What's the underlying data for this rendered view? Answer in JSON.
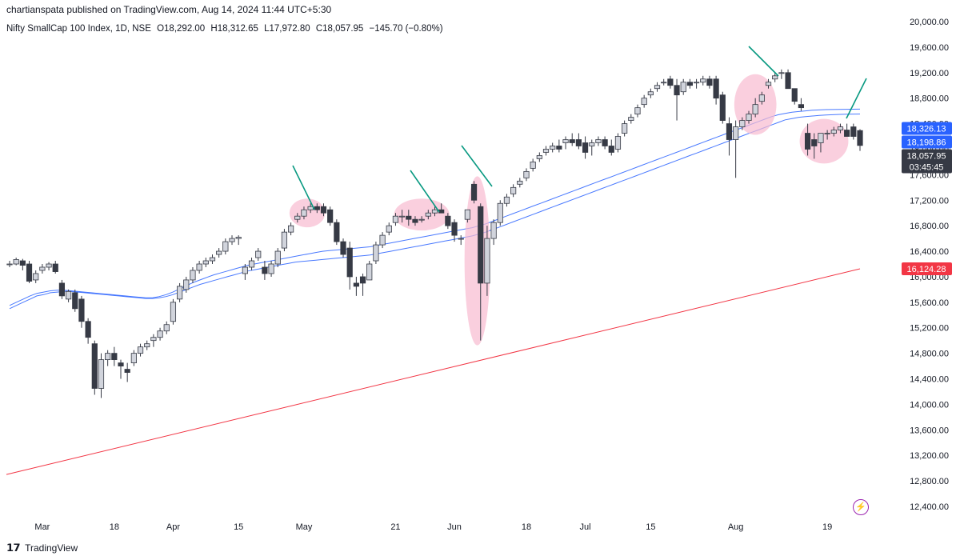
{
  "header": {
    "publisher": "chartianspata published on TradingView.com, Aug 14, 2024 11:44 UTC+5:30"
  },
  "symbol_line": {
    "name": "Nifty SmallCap 100 Index, 1D, NSE",
    "open": "O18,292.00",
    "high": "H18,312.65",
    "low": "L17,972.80",
    "close": "C18,057.95",
    "change": "−145.70 (−0.80%)"
  },
  "footer": {
    "brand": "TradingView",
    "logo": "tv-logo-icon"
  },
  "icons": {
    "lightning": "lightning-icon"
  },
  "price_tags": [
    {
      "label": "18,326.13",
      "value": 18326.13,
      "color": "#2962ff"
    },
    {
      "label": "18,198.86",
      "value": 18198.86,
      "color": "#2962ff"
    },
    {
      "label": "18,057.95",
      "sublabel": "03:45:45",
      "value": 18057.95,
      "color": "#363a45"
    },
    {
      "label": "16,124.28",
      "value": 16124.28,
      "color": "#f23645"
    }
  ],
  "chart_data": {
    "type": "candlestick",
    "ylim": [
      12200,
      20000
    ],
    "y_ticks": [
      12400,
      12800,
      13200,
      13600,
      14000,
      14400,
      14800,
      15200,
      15600,
      16000,
      16400,
      16800,
      17200,
      17600,
      18000,
      18400,
      18800,
      19200,
      19600,
      20000
    ],
    "y_tick_labels": [
      "12,400.00",
      "12,800.00",
      "13,200.00",
      "13,600.00",
      "14,000.00",
      "14,400.00",
      "14,800.00",
      "15,200.00",
      "15,600.00",
      "16,000.00",
      "16,400.00",
      "16,800.00",
      "17,200.00",
      "17,600.00",
      "18,000.00",
      "18,400.00",
      "18,800.00",
      "19,200.00",
      "19,600.00",
      "20,000.00"
    ],
    "x_tick_labels": [
      {
        "label": "Mar",
        "index": 5
      },
      {
        "label": "18",
        "index": 16
      },
      {
        "label": "Apr",
        "index": 25
      },
      {
        "label": "15",
        "index": 35
      },
      {
        "label": "May",
        "index": 45
      },
      {
        "label": "21",
        "index": 59
      },
      {
        "label": "Jun",
        "index": 68
      },
      {
        "label": "18",
        "index": 79
      },
      {
        "label": "Jul",
        "index": 88
      },
      {
        "label": "15",
        "index": 98
      },
      {
        "label": "Aug",
        "index": 111
      },
      {
        "label": "19",
        "index": 125
      }
    ],
    "candles": [
      [
        16200,
        16250,
        16150,
        16200
      ],
      [
        16200,
        16300,
        16180,
        16270
      ],
      [
        16250,
        16280,
        16100,
        16180
      ],
      [
        16200,
        16250,
        15900,
        15930
      ],
      [
        15950,
        16100,
        15900,
        16050
      ],
      [
        16100,
        16200,
        16050,
        16150
      ],
      [
        16150,
        16230,
        16100,
        16200
      ],
      [
        16200,
        16250,
        16050,
        16080
      ],
      [
        15900,
        15950,
        15650,
        15700
      ],
      [
        15650,
        15800,
        15600,
        15770
      ],
      [
        15750,
        15800,
        15450,
        15500
      ],
      [
        15650,
        15700,
        15200,
        15300
      ],
      [
        15300,
        15350,
        14950,
        15050
      ],
      [
        14950,
        15000,
        14150,
        14250
      ],
      [
        14250,
        14800,
        14100,
        14700
      ],
      [
        14700,
        14850,
        14600,
        14800
      ],
      [
        14800,
        14900,
        14600,
        14700
      ],
      [
        14650,
        14700,
        14400,
        14600
      ],
      [
        14550,
        14650,
        14350,
        14500
      ],
      [
        14650,
        14850,
        14600,
        14800
      ],
      [
        14800,
        14950,
        14750,
        14900
      ],
      [
        14900,
        15000,
        14850,
        14950
      ],
      [
        15000,
        15100,
        14900,
        15050
      ],
      [
        15050,
        15200,
        15000,
        15150
      ],
      [
        15150,
        15300,
        15100,
        15250
      ],
      [
        15300,
        15650,
        15250,
        15600
      ],
      [
        15650,
        15900,
        15600,
        15850
      ],
      [
        15800,
        16000,
        15750,
        15950
      ],
      [
        15950,
        16150,
        15900,
        16100
      ],
      [
        16100,
        16250,
        16050,
        16200
      ],
      [
        16200,
        16300,
        16150,
        16250
      ],
      [
        16250,
        16350,
        16200,
        16300
      ],
      [
        16350,
        16450,
        16300,
        16400
      ],
      [
        16400,
        16600,
        16350,
        16550
      ],
      [
        16550,
        16650,
        16500,
        16600
      ],
      [
        16600,
        16650,
        16500,
        16620
      ],
      [
        16050,
        16200,
        15950,
        16150
      ],
      [
        16150,
        16300,
        16100,
        16250
      ],
      [
        16300,
        16450,
        16250,
        16400
      ],
      [
        16150,
        16250,
        15950,
        16050
      ],
      [
        16050,
        16250,
        16000,
        16200
      ],
      [
        16200,
        16450,
        16150,
        16400
      ],
      [
        16450,
        16750,
        16400,
        16700
      ],
      [
        16700,
        16850,
        16650,
        16800
      ],
      [
        16900,
        17000,
        16850,
        16950
      ],
      [
        16950,
        17100,
        16900,
        17050
      ],
      [
        17050,
        17150,
        17000,
        17100
      ],
      [
        17100,
        17150,
        17000,
        17050
      ],
      [
        17100,
        17150,
        16950,
        17000
      ],
      [
        17050,
        17100,
        16800,
        16850
      ],
      [
        16850,
        16900,
        16500,
        16550
      ],
      [
        16550,
        16600,
        16300,
        16350
      ],
      [
        16450,
        16550,
        15800,
        16000
      ],
      [
        15900,
        16000,
        15700,
        15850
      ],
      [
        16000,
        16050,
        15700,
        15900
      ],
      [
        15950,
        16250,
        15950,
        16200
      ],
      [
        16250,
        16550,
        16200,
        16500
      ],
      [
        16500,
        16700,
        16450,
        16650
      ],
      [
        16700,
        16850,
        16650,
        16800
      ],
      [
        16850,
        17000,
        16800,
        16950
      ],
      [
        16950,
        17050,
        16850,
        16950
      ],
      [
        16950,
        17050,
        16800,
        16900
      ],
      [
        16900,
        16950,
        16800,
        16850
      ],
      [
        16900,
        16950,
        16850,
        16900
      ],
      [
        16950,
        17050,
        16900,
        17000
      ],
      [
        17000,
        17100,
        16950,
        17050
      ],
      [
        17050,
        17150,
        17000,
        17000
      ],
      [
        16950,
        17000,
        16750,
        16800
      ],
      [
        16850,
        16900,
        16550,
        16650
      ],
      [
        16600,
        16650,
        16500,
        16600
      ],
      [
        16900,
        17000,
        16850,
        17050
      ],
      [
        17450,
        17500,
        17150,
        17200
      ],
      [
        17100,
        17150,
        15000,
        15900
      ],
      [
        15900,
        16800,
        15700,
        16600
      ],
      [
        16600,
        16900,
        16500,
        16850
      ],
      [
        16850,
        17200,
        16800,
        17150
      ],
      [
        17150,
        17300,
        17100,
        17250
      ],
      [
        17300,
        17450,
        17250,
        17400
      ],
      [
        17450,
        17550,
        17400,
        17500
      ],
      [
        17550,
        17700,
        17500,
        17650
      ],
      [
        17700,
        17850,
        17650,
        17800
      ],
      [
        17850,
        17950,
        17800,
        17900
      ],
      [
        17950,
        18050,
        17900,
        18000
      ],
      [
        18000,
        18100,
        17950,
        18050
      ],
      [
        18050,
        18150,
        17950,
        18000
      ],
      [
        18100,
        18200,
        18000,
        18150
      ],
      [
        18150,
        18250,
        18050,
        18100
      ],
      [
        18150,
        18250,
        18000,
        18050
      ],
      [
        18100,
        18200,
        17850,
        17950
      ],
      [
        18050,
        18150,
        17900,
        18100
      ],
      [
        18100,
        18200,
        18050,
        18150
      ],
      [
        18150,
        18200,
        18000,
        18050
      ],
      [
        18050,
        18150,
        17900,
        17950
      ],
      [
        18000,
        18250,
        17950,
        18200
      ],
      [
        18250,
        18450,
        18200,
        18400
      ],
      [
        18450,
        18550,
        18400,
        18500
      ],
      [
        18550,
        18700,
        18500,
        18650
      ],
      [
        18700,
        18850,
        18650,
        18800
      ],
      [
        18850,
        18950,
        18800,
        18900
      ],
      [
        18950,
        19050,
        18900,
        19000
      ],
      [
        19050,
        19100,
        19000,
        19050
      ],
      [
        19100,
        19150,
        18950,
        19000
      ],
      [
        19000,
        19100,
        18450,
        18850
      ],
      [
        18900,
        19100,
        18850,
        19050
      ],
      [
        19050,
        19100,
        18950,
        19000
      ],
      [
        19050,
        19100,
        18950,
        19050
      ],
      [
        19050,
        19150,
        19000,
        19100
      ],
      [
        19100,
        19150,
        18950,
        19000
      ],
      [
        19100,
        19150,
        18700,
        18800
      ],
      [
        18850,
        18900,
        18400,
        18450
      ],
      [
        18400,
        18500,
        17900,
        18150
      ],
      [
        18150,
        18450,
        17550,
        18350
      ],
      [
        18350,
        18500,
        18300,
        18450
      ],
      [
        18450,
        18600,
        18400,
        18550
      ],
      [
        18550,
        18800,
        18500,
        18700
      ],
      [
        18750,
        18900,
        18700,
        18850
      ],
      [
        19000,
        19100,
        18950,
        19050
      ],
      [
        19100,
        19200,
        19050,
        19150
      ],
      [
        19200,
        19250,
        19100,
        19200
      ],
      [
        19200,
        19250,
        18950,
        18950
      ],
      [
        18950,
        18950,
        18700,
        18750
      ],
      [
        18700,
        18800,
        18600,
        18650
      ],
      [
        18250,
        18400,
        17900,
        18000
      ],
      [
        18150,
        18250,
        17850,
        18050
      ],
      [
        18100,
        18250,
        17950,
        18250
      ],
      [
        18250,
        18300,
        18150,
        18250
      ],
      [
        18250,
        18350,
        18200,
        18300
      ],
      [
        18300,
        18400,
        18250,
        18350
      ],
      [
        18300,
        18400,
        18200,
        18200
      ],
      [
        18350,
        18400,
        18150,
        18200
      ],
      [
        18292,
        18312.65,
        17972.8,
        18057.95
      ]
    ],
    "sma_50": [
      15500,
      15550,
      15600,
      15650,
      15700,
      15720,
      15750,
      15760,
      15770,
      15770,
      15760,
      15750,
      15740,
      15730,
      15720,
      15710,
      15700,
      15690,
      15680,
      15670,
      15660,
      15660,
      15670,
      15690,
      15720,
      15760,
      15800,
      15840,
      15880,
      15910,
      15940,
      15970,
      16000,
      16030,
      16060,
      16090,
      16110,
      16130,
      16150,
      16170,
      16190,
      16210,
      16230,
      16240,
      16250,
      16260,
      16270,
      16280,
      16290,
      16300,
      16310,
      16320,
      16330,
      16340,
      16360,
      16380,
      16400,
      16420,
      16440,
      16460,
      16480,
      16500,
      16520,
      16540,
      16560,
      16580,
      16600,
      16620,
      16640,
      16670,
      16700,
      16740,
      16780,
      16820,
      16860,
      16900,
      16940,
      16980,
      17020,
      17060,
      17100,
      17140,
      17180,
      17220,
      17260,
      17300,
      17340,
      17380,
      17420,
      17460,
      17500,
      17540,
      17580,
      17620,
      17660,
      17700,
      17740,
      17780,
      17820,
      17860,
      17900,
      17940,
      17980,
      18020,
      18060,
      18100,
      18140,
      18180,
      18220,
      18260,
      18300,
      18340,
      18380,
      18420,
      18460,
      18480,
      18500,
      18510,
      18520,
      18530,
      18535,
      18540,
      18545,
      18548,
      18550,
      18552
    ],
    "sma_44": [
      15550,
      15600,
      15650,
      15700,
      15740,
      15760,
      15780,
      15790,
      15790,
      15780,
      15770,
      15760,
      15750,
      15740,
      15730,
      15720,
      15710,
      15700,
      15690,
      15680,
      15670,
      15670,
      15690,
      15720,
      15760,
      15810,
      15860,
      15910,
      15950,
      15990,
      16030,
      16060,
      16090,
      16120,
      16150,
      16180,
      16200,
      16220,
      16240,
      16260,
      16280,
      16300,
      16320,
      16340,
      16360,
      16380,
      16400,
      16410,
      16420,
      16430,
      16440,
      16450,
      16460,
      16470,
      16490,
      16510,
      16530,
      16550,
      16570,
      16590,
      16610,
      16630,
      16650,
      16670,
      16690,
      16710,
      16730,
      16750,
      16770,
      16800,
      16830,
      16870,
      16910,
      16950,
      16990,
      17030,
      17070,
      17110,
      17150,
      17190,
      17230,
      17270,
      17310,
      17350,
      17390,
      17430,
      17470,
      17510,
      17550,
      17590,
      17630,
      17670,
      17710,
      17750,
      17790,
      17830,
      17870,
      17910,
      17950,
      17990,
      18030,
      18070,
      18110,
      18150,
      18190,
      18230,
      18270,
      18310,
      18350,
      18390,
      18430,
      18470,
      18510,
      18540,
      18560,
      18580,
      18590,
      18600,
      18610,
      18615,
      18620,
      18622,
      18624,
      18626,
      18627,
      18628
    ],
    "sma_200": {
      "start": 12900,
      "end": 16124.28
    }
  },
  "annotations": {
    "circles_color": "#f8bbd0",
    "arrows_color": "#089981"
  }
}
